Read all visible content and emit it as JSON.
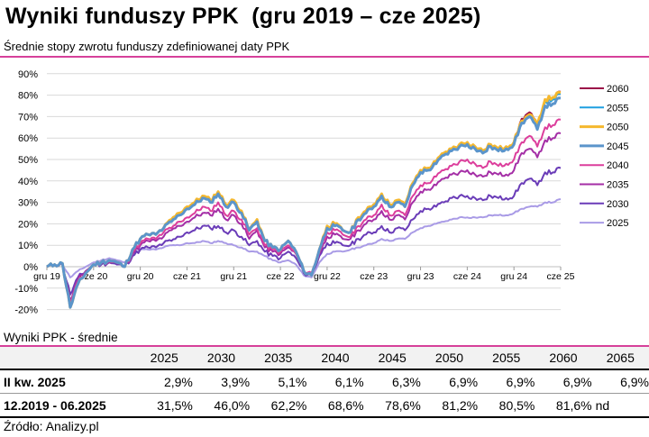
{
  "title": "Wyniki funduszy PPK  (gru 2019 – cze 2025)",
  "subtitle": "Średnie stopy zwrotu funduszy zdefiniowanej daty PPK",
  "accent_color": "#d6409a",
  "chart_data": {
    "type": "line",
    "title": "",
    "xlabel": "",
    "ylabel": "",
    "x_start": "2019-12",
    "x_end": "2025-06",
    "x_frequency": "monthly",
    "x_ticks": [
      "gru 19",
      "cze 20",
      "gru 20",
      "cze 21",
      "gru 21",
      "cze 22",
      "gru 22",
      "cze 23",
      "gru 23",
      "cze 24",
      "gru 24",
      "cze 25"
    ],
    "y_ticks": [
      -20,
      -10,
      0,
      10,
      20,
      30,
      40,
      50,
      60,
      70,
      80,
      90
    ],
    "y_tick_labels": [
      "-20%",
      "-10%",
      "0%",
      "10%",
      "20%",
      "30%",
      "40%",
      "50%",
      "60%",
      "70%",
      "80%",
      "90%"
    ],
    "ylim": [
      -20,
      90
    ],
    "grid": true,
    "legend_position": "right",
    "series": [
      {
        "name": "2025",
        "color": "#a99be6",
        "values": [
          0,
          1,
          1,
          -5,
          -2,
          0,
          2,
          3,
          4,
          3,
          2,
          5,
          8,
          8,
          8,
          9,
          10,
          10,
          11,
          11,
          12,
          11,
          12,
          11,
          10,
          9,
          7,
          7,
          5,
          3,
          2,
          3,
          1,
          -4,
          -5,
          2,
          6,
          7,
          7,
          8,
          9,
          10,
          11,
          13,
          12,
          13,
          13,
          16,
          18,
          19,
          20,
          21,
          22,
          23,
          23,
          23,
          23,
          24,
          24,
          24,
          25,
          27,
          28,
          28,
          30,
          30,
          31.5
        ]
      },
      {
        "name": "2030",
        "color": "#6a3cb8",
        "values": [
          0,
          1,
          1,
          -13,
          -5,
          -2,
          1,
          1,
          2,
          1,
          0,
          5,
          8,
          9,
          9,
          11,
          12,
          14,
          16,
          17,
          19,
          18,
          19,
          16,
          17,
          14,
          10,
          12,
          7,
          5,
          4,
          7,
          4,
          -3,
          -4,
          5,
          11,
          11,
          10,
          10,
          13,
          15,
          16,
          19,
          16,
          18,
          17,
          22,
          26,
          27,
          28,
          30,
          32,
          33,
          33,
          32,
          31,
          33,
          32,
          32,
          33,
          39,
          41,
          38,
          44,
          44,
          46.0
        ]
      },
      {
        "name": "2035",
        "color": "#a42ea6",
        "values": [
          0,
          1,
          1,
          -16,
          -6,
          -2,
          1,
          2,
          2,
          2,
          0,
          6,
          10,
          12,
          12,
          14,
          17,
          19,
          21,
          23,
          25,
          24,
          27,
          22,
          24,
          20,
          13,
          17,
          9,
          7,
          6,
          9,
          6,
          -2,
          -3,
          6,
          14,
          15,
          13,
          13,
          17,
          20,
          22,
          26,
          22,
          24,
          22,
          30,
          35,
          36,
          38,
          41,
          43,
          44,
          45,
          43,
          42,
          44,
          43,
          43,
          45,
          53,
          55,
          51,
          59,
          60,
          62.2
        ]
      },
      {
        "name": "2040",
        "color": "#dc3e9c",
        "values": [
          0,
          1,
          1,
          -17,
          -7,
          -3,
          1,
          2,
          3,
          2,
          0,
          7,
          11,
          13,
          13,
          16,
          18,
          21,
          23,
          25,
          28,
          26,
          30,
          24,
          26,
          22,
          15,
          18,
          10,
          8,
          7,
          10,
          6,
          -2,
          -3,
          7,
          16,
          17,
          15,
          14,
          19,
          22,
          24,
          29,
          24,
          26,
          24,
          33,
          38,
          39,
          42,
          45,
          47,
          49,
          50,
          48,
          46,
          49,
          47,
          48,
          50,
          58,
          61,
          56,
          65,
          66,
          68.6
        ]
      },
      {
        "name": "2060",
        "color": "#9b1048",
        "values": [
          0,
          1,
          1.5,
          -19,
          -8,
          -3,
          1,
          2,
          3,
          2,
          0,
          8,
          13,
          15,
          15,
          18,
          22,
          25,
          28,
          30,
          33,
          31,
          35,
          29,
          31,
          26,
          17,
          22,
          12,
          9,
          8,
          12,
          7,
          -2,
          -4,
          8,
          19,
          20,
          17,
          16,
          23,
          26,
          29,
          34,
          29,
          31,
          29,
          39,
          45,
          46,
          49,
          53,
          55,
          57,
          58,
          56,
          54,
          57,
          55,
          56,
          58,
          69,
          72,
          66,
          78,
          79,
          81.6
        ]
      },
      {
        "name": "2055",
        "color": "#1f9fe0",
        "values": [
          0,
          1,
          1.5,
          -19,
          -8,
          -3,
          1,
          2,
          3,
          2,
          0,
          8,
          13,
          15,
          15,
          18,
          21,
          24,
          27,
          29,
          32,
          30,
          34,
          28,
          30,
          25,
          17,
          21,
          12,
          9,
          8,
          12,
          7,
          -2,
          -4,
          8,
          18,
          19,
          17,
          16,
          22,
          25,
          28,
          33,
          28,
          30,
          28,
          38,
          44,
          45,
          48,
          52,
          54,
          56,
          57,
          55,
          53,
          56,
          54,
          55,
          57,
          68,
          71,
          65,
          77,
          78,
          80.5
        ]
      },
      {
        "name": "2050",
        "color": "#f5b82e",
        "values": [
          0,
          1,
          1.5,
          -19,
          -8,
          -3,
          1,
          2,
          3,
          2,
          0,
          8,
          13,
          15,
          15,
          18,
          22,
          25,
          28,
          30,
          33,
          31,
          35,
          29,
          31,
          26,
          17,
          22,
          12,
          9,
          8,
          12,
          7,
          -2,
          -4,
          8,
          19,
          20,
          17,
          16,
          23,
          26,
          29,
          34,
          29,
          31,
          29,
          39,
          45,
          46,
          49,
          53,
          55,
          57,
          58,
          56,
          54,
          57,
          55,
          56,
          58,
          68,
          71,
          66,
          78,
          79,
          81.2
        ]
      },
      {
        "name": "2045",
        "color": "#5b95cb",
        "values": [
          0,
          1,
          1.5,
          -19,
          -8,
          -3,
          1,
          2,
          3,
          2,
          0,
          8,
          13,
          15,
          15,
          18,
          21,
          24,
          27,
          29,
          32,
          30,
          34,
          28,
          30,
          25,
          17,
          21,
          12,
          9,
          8,
          12,
          7,
          -2,
          -4,
          8,
          18,
          19,
          17,
          16,
          22,
          25,
          28,
          33,
          28,
          30,
          28,
          38,
          44,
          45,
          48,
          52,
          54,
          56,
          57,
          55,
          53,
          56,
          54,
          55,
          57,
          67,
          70,
          64,
          75,
          76,
          78.6
        ]
      }
    ],
    "legend_order": [
      "2060",
      "2055",
      "2050",
      "2045",
      "2040",
      "2035",
      "2030",
      "2025"
    ]
  },
  "table": {
    "title": "Wyniki PPK - średnie",
    "columns": [
      "2025",
      "2030",
      "2035",
      "2040",
      "2045",
      "2050",
      "2055",
      "2060",
      "2065"
    ],
    "rows": [
      {
        "label": "II kw. 2025",
        "values": [
          "2,9%",
          "3,9%",
          "5,1%",
          "6,1%",
          "6,3%",
          "6,9%",
          "6,9%",
          "6,9%",
          "6,9%"
        ]
      },
      {
        "label": "12.2019 - 06.2025",
        "values": [
          "31,5%",
          "46,0%",
          "62,2%",
          "68,6%",
          "78,6%",
          "81,2%",
          "80,5%",
          "81,6%",
          "nd"
        ]
      }
    ]
  },
  "source": "Źródło: Analizy.pl"
}
